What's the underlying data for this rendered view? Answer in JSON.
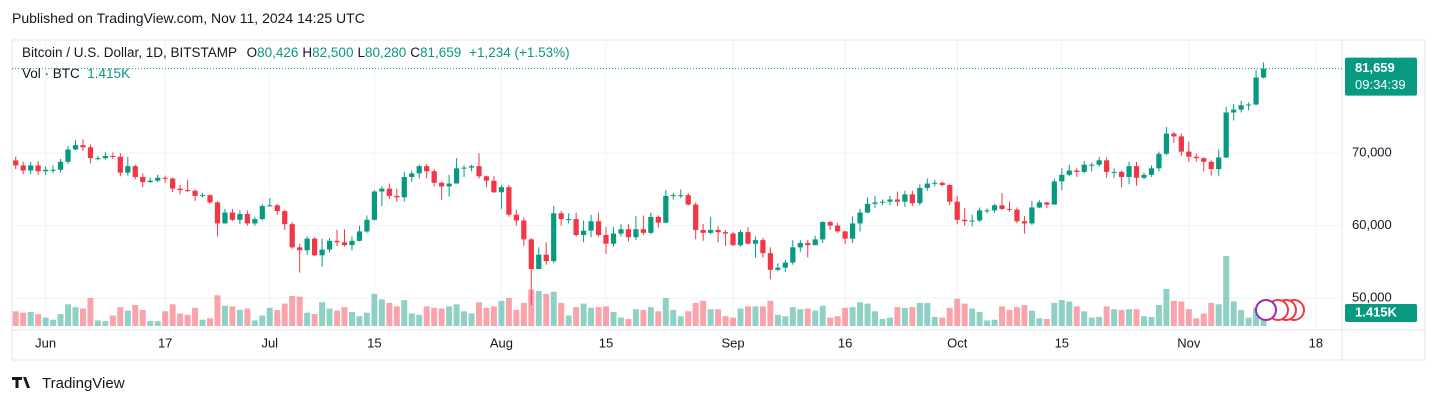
{
  "header": {
    "published": "Published on TradingView.com, Nov 11, 2024 14:25 UTC"
  },
  "footer": {
    "logo": "TradingView"
  },
  "chart_data": {
    "type": "candlestick",
    "legend": {
      "symbol": "Bitcoin / U.S. Dollar, 1D, BITSTAMP",
      "ohlc": [
        {
          "key": "O",
          "value": "80,426"
        },
        {
          "key": "H",
          "value": "82,500"
        },
        {
          "key": "L",
          "value": "80,280"
        },
        {
          "key": "C",
          "value": "81,659"
        }
      ],
      "change": "+1,234 (+1.53%)",
      "volume_name": "Vol · BTC",
      "volume_label": "1.415K"
    },
    "last_price_label": "81,659",
    "countdown": "09:34:39",
    "up_color": "#089981",
    "down_color": "#f23645",
    "x": [
      "May 28",
      "May 29",
      "May 30",
      "May 31",
      "Jun 1",
      "Jun 2",
      "Jun 3",
      "Jun 4",
      "Jun 5",
      "Jun 6",
      "Jun 7",
      "Jun 8",
      "Jun 9",
      "Jun 10",
      "Jun 11",
      "Jun 12",
      "Jun 13",
      "Jun 14",
      "Jun 15",
      "Jun 16",
      "Jun 17",
      "Jun 18",
      "Jun 19",
      "Jun 20",
      "Jun 21",
      "Jun 22",
      "Jun 23",
      "Jun 24",
      "Jun 25",
      "Jun 26",
      "Jun 27",
      "Jun 28",
      "Jun 29",
      "Jun 30",
      "Jul 1",
      "Jul 2",
      "Jul 3",
      "Jul 4",
      "Jul 5",
      "Jul 6",
      "Jul 7",
      "Jul 8",
      "Jul 9",
      "Jul 10",
      "Jul 11",
      "Jul 12",
      "Jul 13",
      "Jul 14",
      "Jul 15",
      "Jul 16",
      "Jul 17",
      "Jul 18",
      "Jul 19",
      "Jul 20",
      "Jul 21",
      "Jul 22",
      "Jul 23",
      "Jul 24",
      "Jul 25",
      "Jul 26",
      "Jul 27",
      "Jul 28",
      "Jul 29",
      "Jul 30",
      "Jul 31",
      "Aug 1",
      "Aug 2",
      "Aug 3",
      "Aug 4",
      "Aug 5",
      "Aug 6",
      "Aug 7",
      "Aug 8",
      "Aug 9",
      "Aug 10",
      "Aug 11",
      "Aug 12",
      "Aug 13",
      "Aug 14",
      "Aug 15",
      "Aug 16",
      "Aug 17",
      "Aug 18",
      "Aug 19",
      "Aug 20",
      "Aug 21",
      "Aug 22",
      "Aug 23",
      "Aug 24",
      "Aug 25",
      "Aug 26",
      "Aug 27",
      "Aug 28",
      "Aug 29",
      "Aug 30",
      "Aug 31",
      "Sep 1",
      "Sep 2",
      "Sep 3",
      "Sep 4",
      "Sep 5",
      "Sep 6",
      "Sep 7",
      "Sep 8",
      "Sep 9",
      "Sep 10",
      "Sep 11",
      "Sep 12",
      "Sep 13",
      "Sep 14",
      "Sep 15",
      "Sep 16",
      "Sep 17",
      "Sep 18",
      "Sep 19",
      "Sep 20",
      "Sep 21",
      "Sep 22",
      "Sep 23",
      "Sep 24",
      "Sep 25",
      "Sep 26",
      "Sep 27",
      "Sep 28",
      "Sep 29",
      "Sep 30",
      "Oct 1",
      "Oct 2",
      "Oct 3",
      "Oct 4",
      "Oct 5",
      "Oct 6",
      "Oct 7",
      "Oct 8",
      "Oct 9",
      "Oct 10",
      "Oct 11",
      "Oct 12",
      "Oct 13",
      "Oct 14",
      "Oct 15",
      "Oct 16",
      "Oct 17",
      "Oct 18",
      "Oct 19",
      "Oct 20",
      "Oct 21",
      "Oct 22",
      "Oct 23",
      "Oct 24",
      "Oct 25",
      "Oct 26",
      "Oct 27",
      "Oct 28",
      "Oct 29",
      "Oct 30",
      "Oct 31",
      "Nov 1",
      "Nov 2",
      "Nov 3",
      "Nov 4",
      "Nov 5",
      "Nov 6",
      "Nov 7",
      "Nov 8",
      "Nov 9",
      "Nov 10",
      "Nov 11",
      "Nov 12",
      "Nov 13",
      "Nov 14",
      "Nov 15",
      "Nov 16",
      "Nov 17",
      "Nov 18",
      "Nov 19",
      "Nov 20",
      "Nov 21"
    ],
    "open": [
      69000,
      68300,
      67600,
      68300,
      67500,
      67700,
      67700,
      68800,
      70500,
      71100,
      70800,
      69300,
      69300,
      69600,
      69500,
      67300,
      68200,
      66700,
      66000,
      66200,
      66600,
      66500,
      65100,
      64900,
      64800,
      64100,
      64200,
      63200,
      60300,
      61800,
      60800,
      61600,
      60300,
      60900,
      62700,
      62800,
      62000,
      60200,
      57000,
      56600,
      58200,
      55900,
      56700,
      57900,
      57700,
      57300,
      57900,
      59200,
      60800,
      64700,
      65100,
      64100,
      63900,
      66700,
      67200,
      68200,
      67500,
      65900,
      65400,
      65800,
      67900,
      68000,
      68200,
      66800,
      66200,
      64600,
      65300,
      61500,
      60700,
      58100,
      54000,
      56000,
      55100,
      61700,
      60900,
      60900,
      58700,
      59300,
      60600,
      58700,
      57500,
      58900,
      59500,
      58400,
      59500,
      59000,
      61200,
      60400,
      64100,
      64200,
      64200,
      62900,
      59400,
      59000,
      59400,
      59100,
      58900,
      57300,
      59100,
      57500,
      58000,
      56200,
      53900,
      54200,
      54900,
      57000,
      57600,
      57300,
      58100,
      60500,
      60000,
      59200,
      58200,
      60300,
      61800,
      63000,
      63200,
      63300,
      63600,
      63300,
      64300,
      63100,
      65200,
      65800,
      65900,
      65600,
      63300,
      60800,
      60600,
      60700,
      62100,
      62100,
      62800,
      62300,
      62200,
      60600,
      60300,
      62500,
      63200,
      62900,
      66100,
      67000,
      67600,
      67400,
      68400,
      68400,
      69000,
      67400,
      67400,
      66700,
      68200,
      66600,
      67000,
      67900,
      69900,
      72700,
      72300,
      70200,
      69500,
      69300,
      68800,
      67800,
      69400,
      75600,
      76000,
      76600,
      76700,
      80426,
      null,
      null,
      null,
      null,
      null,
      null,
      null,
      null,
      null,
      null
    ],
    "high": [
      69500,
      68800,
      68800,
      68900,
      68200,
      68300,
      69200,
      71000,
      71800,
      71900,
      71200,
      69600,
      70100,
      70100,
      70000,
      69500,
      68400,
      67200,
      66600,
      67000,
      66900,
      66600,
      65600,
      66300,
      65000,
      64500,
      64300,
      63400,
      62300,
      62300,
      62100,
      62100,
      61200,
      63000,
      63800,
      63000,
      62200,
      60500,
      57500,
      58500,
      58400,
      58200,
      58300,
      59400,
      59500,
      58500,
      60000,
      61400,
      64900,
      65400,
      65800,
      65100,
      67400,
      67600,
      68400,
      68500,
      67800,
      66100,
      67000,
      69300,
      68300,
      68400,
      70000,
      66900,
      66800,
      65600,
      65600,
      62200,
      61100,
      58300,
      57000,
      57700,
      62700,
      62000,
      61700,
      61800,
      60700,
      61500,
      61800,
      59800,
      59800,
      60200,
      60200,
      61300,
      61400,
      61800,
      61400,
      64900,
      64500,
      65000,
      64500,
      63200,
      60200,
      61200,
      59900,
      59400,
      59100,
      59400,
      59800,
      58500,
      58300,
      57000,
      54800,
      55300,
      58000,
      58000,
      58000,
      58600,
      60600,
      60600,
      60400,
      59300,
      61300,
      62300,
      63900,
      64100,
      63600,
      64100,
      64700,
      64800,
      64800,
      65700,
      66500,
      66300,
      66100,
      65700,
      64100,
      62400,
      61500,
      62500,
      62400,
      63000,
      64500,
      63300,
      62500,
      61300,
      63400,
      63500,
      63300,
      66500,
      67900,
      68400,
      67900,
      68900,
      68700,
      69500,
      69400,
      67900,
      67600,
      68800,
      68800,
      67300,
      68300,
      70200,
      73600,
      72900,
      72700,
      71600,
      69900,
      69400,
      69000,
      70500,
      76400,
      76800,
      77200,
      77000,
      81500,
      82500,
      null,
      null,
      null,
      null,
      null,
      null,
      null,
      null,
      null,
      null
    ],
    "low": [
      67800,
      67100,
      67100,
      67000,
      67000,
      67200,
      67300,
      68500,
      70400,
      70300,
      68600,
      69000,
      69100,
      69200,
      66800,
      66900,
      66400,
      65300,
      65900,
      66000,
      65900,
      64600,
      64300,
      64600,
      63400,
      63900,
      63000,
      58500,
      60300,
      60600,
      60200,
      60000,
      60000,
      60700,
      62600,
      61500,
      59400,
      56800,
      53500,
      56000,
      55800,
      54300,
      56300,
      57200,
      57100,
      56600,
      57800,
      59000,
      60700,
      62700,
      63700,
      63300,
      63300,
      66000,
      66500,
      66500,
      65400,
      63500,
      64000,
      65800,
      66700,
      67500,
      66500,
      65300,
      64500,
      62300,
      61200,
      60000,
      57200,
      49000,
      54000,
      54600,
      54800,
      60000,
      60300,
      58500,
      57700,
      58400,
      58500,
      56100,
      57100,
      58500,
      57800,
      58000,
      58700,
      58800,
      59700,
      60300,
      63600,
      63800,
      62800,
      58100,
      57900,
      58800,
      57700,
      57200,
      57200,
      57100,
      57400,
      55600,
      55600,
      52600,
      53700,
      53600,
      54600,
      56400,
      55600,
      57300,
      57600,
      59400,
      59000,
      57500,
      57600,
      59200,
      61700,
      62400,
      62800,
      62800,
      62700,
      62600,
      62700,
      62800,
      64800,
      65400,
      65400,
      62800,
      60200,
      60000,
      59900,
      60500,
      61700,
      61800,
      62100,
      61900,
      60300,
      58900,
      60100,
      62400,
      62400,
      62900,
      64900,
      66800,
      66700,
      67200,
      67500,
      68100,
      66600,
      66600,
      65300,
      65700,
      65500,
      66400,
      66700,
      67500,
      69700,
      71400,
      69600,
      68800,
      68800,
      67500,
      66900,
      66800,
      69300,
      74500,
      75600,
      75900,
      76600,
      80280,
      null,
      null,
      null,
      null,
      null,
      null,
      null,
      null,
      null,
      null
    ],
    "close": [
      68300,
      67600,
      68300,
      67500,
      67700,
      67700,
      68800,
      70500,
      71100,
      70800,
      69300,
      69300,
      69600,
      69500,
      67300,
      68200,
      66700,
      66000,
      66200,
      66600,
      66500,
      65100,
      64900,
      64800,
      64100,
      64200,
      63200,
      60300,
      61800,
      60800,
      61600,
      60300,
      60900,
      62700,
      62800,
      62000,
      60200,
      57000,
      56600,
      58200,
      55900,
      56700,
      57900,
      57700,
      57300,
      57900,
      59200,
      60800,
      64700,
      65100,
      64100,
      63900,
      66700,
      67200,
      68200,
      67500,
      65900,
      65400,
      65800,
      67900,
      68000,
      68200,
      66800,
      66200,
      64600,
      65300,
      61500,
      60700,
      58100,
      54000,
      56000,
      55100,
      61700,
      60900,
      60900,
      58700,
      59300,
      60600,
      58700,
      57500,
      58900,
      59500,
      58400,
      59500,
      59000,
      61200,
      60400,
      64100,
      64200,
      64200,
      62900,
      59400,
      59000,
      59400,
      59100,
      58900,
      57300,
      59100,
      57500,
      58000,
      56200,
      53900,
      54200,
      54900,
      57000,
      57600,
      57300,
      58100,
      60500,
      60000,
      59200,
      58200,
      60300,
      61800,
      63000,
      63200,
      63300,
      63600,
      63300,
      64300,
      63100,
      65200,
      65800,
      65900,
      65600,
      63300,
      60800,
      60600,
      60700,
      62100,
      62100,
      62800,
      62300,
      62200,
      60600,
      60300,
      62500,
      63200,
      62900,
      66100,
      67000,
      67600,
      67400,
      68400,
      68400,
      69000,
      67400,
      67400,
      66700,
      68200,
      66600,
      67000,
      67900,
      69900,
      72700,
      72300,
      70200,
      69500,
      69300,
      68800,
      67800,
      69400,
      75600,
      76000,
      76600,
      76700,
      80426,
      81659,
      null,
      null,
      null,
      null,
      null,
      null,
      null,
      null,
      null,
      null
    ],
    "volume": [
      2100,
      1900,
      2000,
      1700,
      1200,
      900,
      1700,
      3100,
      2700,
      2500,
      4000,
      800,
      700,
      1500,
      2700,
      2200,
      3000,
      2300,
      700,
      700,
      2100,
      3100,
      1800,
      1600,
      2600,
      900,
      1100,
      4400,
      2900,
      2800,
      2300,
      2500,
      800,
      1500,
      2600,
      2300,
      3200,
      4300,
      4200,
      1900,
      1700,
      3400,
      2500,
      2200,
      2700,
      2000,
      1400,
      1900,
      4600,
      3800,
      3300,
      2800,
      3700,
      1800,
      1600,
      2800,
      2600,
      2500,
      2800,
      3100,
      2100,
      1800,
      3400,
      2600,
      2800,
      3600,
      4000,
      2300,
      3300,
      5200,
      5000,
      4600,
      4900,
      3300,
      1500,
      2700,
      3200,
      2600,
      2700,
      2800,
      2000,
      1200,
      1000,
      2400,
      2300,
      2700,
      2100,
      4000,
      2300,
      1400,
      2100,
      3300,
      3600,
      2400,
      2400,
      1400,
      1200,
      2500,
      2800,
      2800,
      2800,
      3600,
      1600,
      1400,
      2700,
      2400,
      2500,
      2200,
      2900,
      1200,
      1400,
      2600,
      2700,
      3400,
      3200,
      2100,
      1000,
      1200,
      2700,
      2600,
      2700,
      3300,
      3300,
      1300,
      1200,
      2600,
      3900,
      3200,
      2500,
      2000,
      800,
      900,
      2800,
      2300,
      2700,
      3000,
      2200,
      1100,
      1000,
      3300,
      3700,
      3500,
      2800,
      2100,
      1200,
      1300,
      2800,
      2400,
      2300,
      2400,
      2400,
      1400,
      1300,
      3000,
      5300,
      3600,
      3500,
      2400,
      1100,
      1800,
      3300,
      3100,
      10000,
      3500,
      2300,
      1200,
      2600,
      1415,
      null,
      null,
      null,
      null,
      null,
      null,
      null,
      null,
      null,
      null
    ],
    "ylim": [
      45600,
      85600
    ],
    "yticks": [
      {
        "value": 50000,
        "label": "50,000"
      },
      {
        "value": 60000,
        "label": "60,000"
      },
      {
        "value": 70000,
        "label": "70,000"
      }
    ],
    "xticks": [
      {
        "value": "Jun 1",
        "label": "Jun"
      },
      {
        "value": "Jun 17",
        "label": "17"
      },
      {
        "value": "Jul 1",
        "label": "Jul"
      },
      {
        "value": "Jul 15",
        "label": "15"
      },
      {
        "value": "Aug 1",
        "label": "Aug"
      },
      {
        "value": "Aug 15",
        "label": "15"
      },
      {
        "value": "Sep 1",
        "label": "Sep"
      },
      {
        "value": "Sep 16",
        "label": "16"
      },
      {
        "value": "Oct 1",
        "label": "Oct"
      },
      {
        "value": "Oct 15",
        "label": "15"
      },
      {
        "value": "Nov 1",
        "label": "Nov"
      },
      {
        "value": "Nov 18",
        "label": "18"
      }
    ],
    "grid": true
  }
}
